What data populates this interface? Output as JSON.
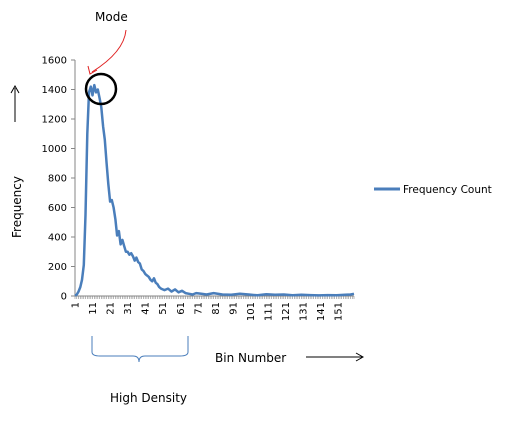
{
  "chart_data": {
    "type": "line",
    "ylabel": "Frequency",
    "xlabel": "Bin Number",
    "ylim": [
      0,
      1600
    ],
    "yticks": [
      0,
      200,
      400,
      600,
      800,
      1000,
      1200,
      1400,
      1600
    ],
    "xlim": [
      1,
      160
    ],
    "xtick_labels": [
      1,
      11,
      21,
      31,
      41,
      51,
      61,
      71,
      81,
      91,
      101,
      111,
      121,
      131,
      141,
      151
    ],
    "grid": false,
    "legend_position": "right",
    "series": [
      {
        "name": "Frequency Count",
        "color": "#4a7ebb",
        "x": [
          1,
          2,
          3,
          4,
          5,
          6,
          7,
          8,
          9,
          10,
          11,
          12,
          13,
          14,
          15,
          16,
          17,
          18,
          19,
          20,
          21,
          22,
          23,
          24,
          25,
          26,
          27,
          28,
          29,
          30,
          31,
          32,
          33,
          34,
          35,
          36,
          37,
          38,
          39,
          40,
          41,
          42,
          43,
          44,
          45,
          46,
          47,
          48,
          49,
          50,
          52,
          54,
          56,
          58,
          60,
          62,
          64,
          66,
          68,
          70,
          73,
          76,
          80,
          85,
          90,
          95,
          100,
          105,
          110,
          115,
          120,
          125,
          130,
          135,
          140,
          145,
          150,
          155,
          158,
          160
        ],
        "y": [
          2,
          10,
          30,
          60,
          110,
          210,
          550,
          1100,
          1380,
          1420,
          1360,
          1430,
          1380,
          1400,
          1340,
          1280,
          1150,
          1060,
          900,
          760,
          640,
          650,
          600,
          520,
          410,
          440,
          350,
          380,
          340,
          300,
          300,
          280,
          290,
          270,
          240,
          260,
          230,
          220,
          180,
          170,
          150,
          140,
          130,
          110,
          100,
          120,
          90,
          80,
          60,
          50,
          40,
          50,
          30,
          45,
          25,
          35,
          20,
          15,
          10,
          20,
          15,
          10,
          20,
          10,
          8,
          15,
          10,
          5,
          12,
          8,
          10,
          5,
          8,
          6,
          4,
          6,
          5,
          8,
          10,
          15
        ]
      }
    ],
    "annotations": {
      "mode_label": "Mode",
      "high_density_label": "High Density"
    }
  }
}
